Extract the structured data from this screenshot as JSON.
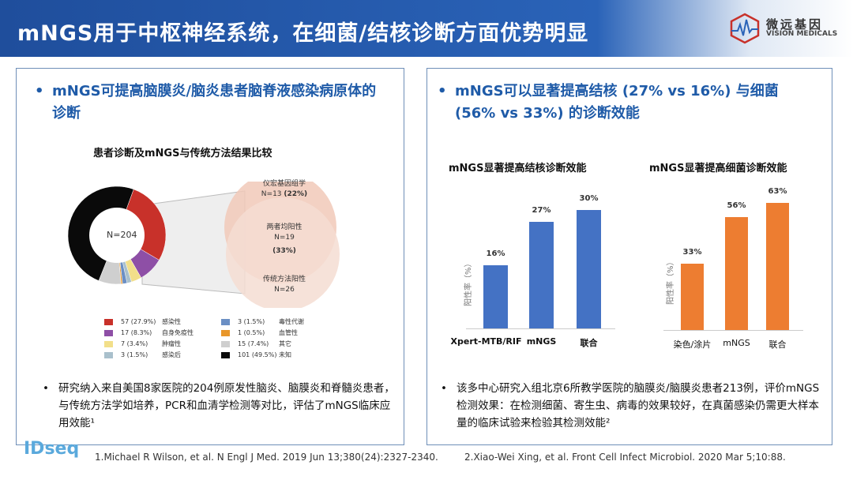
{
  "header": {
    "title": "mNGS用于中枢神经系统，在细菌/结核诊断方面优势明显",
    "logo_cn": "微远基因",
    "logo_en": "VISION MEDICALS"
  },
  "left": {
    "heading": "mNGS可提高脑膜炎/脑炎患者脑脊液感染病原体的诊断",
    "chart_title": "患者诊断及mNGS与传统方法结果比较",
    "donut_center": "N=204",
    "venn": {
      "top_label": "仪宏基因组学",
      "top_n": "N=13",
      "top_pct": "(22%)",
      "mid_label": "两者均阳性",
      "mid_n": "N=19",
      "mid_pct": "(33%)",
      "bottom_label": "传统方法阳性",
      "bottom_n": "N=26"
    },
    "legend": [
      {
        "value": "57 (27.9%)",
        "label": "感染性",
        "color": "#c8312a",
        "pct": 27.9
      },
      {
        "value": "17 (8.3%)",
        "label": "自身免疫性",
        "color": "#8e4fa6",
        "pct": 8.3
      },
      {
        "value": "7 (3.4%)",
        "label": "肿瘤性",
        "color": "#f2df8a",
        "pct": 3.4
      },
      {
        "value": "3 (1.5%)",
        "label": "感染后",
        "color": "#a9c0cc",
        "pct": 1.5
      },
      {
        "value": "3 (1.5%)",
        "label": "毒性代谢",
        "color": "#6b8fc4",
        "pct": 1.5
      },
      {
        "value": "1 (0.5%)",
        "label": "血管性",
        "color": "#e8962a",
        "pct": 0.5
      },
      {
        "value": "15 (7.4%)",
        "label": "其它",
        "color": "#cfcfcf",
        "pct": 7.4
      },
      {
        "value": "101 (49.5%)",
        "label": "未知",
        "color": "#0a0a0a",
        "pct": 49.5
      }
    ],
    "note": "研究纳入来自美国8家医院的204例原发性脑炎、脑膜炎和脊髓炎患者，与传统方法学如培养，PCR和血清学检测等对比，评估了mNGS临床应用效能¹"
  },
  "right": {
    "heading": "mNGS可以显著提高结核 (27% vs 16%) 与细菌 (56% vs 33%) 的诊断效能",
    "note": "该多中心研究入组北京6所教学医院的脑膜炎/脑膜炎患者213例，评价mNGS检测效果：在检测细菌、寄生虫、病毒的效果较好，在真菌感染仍需更大样本量的临床试验来检验其检测效能²"
  },
  "chart_data": [
    {
      "type": "bar",
      "title": "mNGS显著提高结核诊断效能",
      "categories": [
        "Xpert-MTB/RIF",
        "mNGS",
        "联合"
      ],
      "values": [
        16,
        27,
        30
      ],
      "labels": [
        "16%",
        "27%",
        "30%"
      ],
      "ylabel": "阳性率（%）",
      "color": "#4472c4"
    },
    {
      "type": "bar",
      "title": "mNGS显著提高细菌诊断效能",
      "categories": [
        "染色/涂片",
        "mNGS",
        "联合"
      ],
      "values": [
        33,
        56,
        63
      ],
      "labels": [
        "33%",
        "56%",
        "63%"
      ],
      "ylabel": "阳性率（%）",
      "color": "#ed7d31"
    }
  ],
  "footer": {
    "ref1": "1.Michael R Wilson, et al. N Engl J Med. 2019 Jun 13;380(24):2327-2340.",
    "ref2": "2.Xiao-Wei Xing, et al. Front Cell Infect Microbiol. 2020 Mar 5;10:88.",
    "brand": "IDseq"
  }
}
